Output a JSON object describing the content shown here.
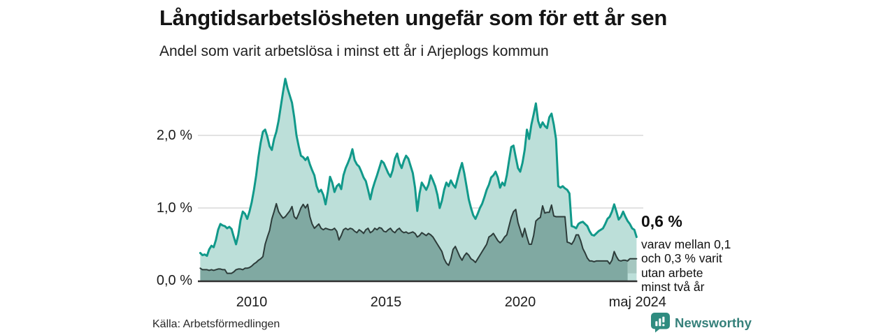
{
  "header": {
    "title": "Långtidsarbetslösheten ungefär som för ett år sen",
    "subtitle": "Andel som varit arbetslösa i minst ett år i Arjeplogs kommun"
  },
  "annotation": {
    "value_label": "0,6 %",
    "lines": [
      "varav mellan 0,1",
      "och 0,3 % varit",
      "utan arbete",
      "minst två år"
    ]
  },
  "footer": {
    "source": "Källa: Arbetsförmedlingen",
    "brand": "Newsworthy"
  },
  "colors": {
    "line_1yr": "#11998a",
    "fill_1yr": "#bcdfd9",
    "line_2yr": "#2d3c3a",
    "fill_2yr": "#80a9a2",
    "band_fill": "#a5c7c0",
    "gridline": "#d8d8d8",
    "baseline": "#303030",
    "brand": "#2f8c80",
    "brand_text": "#35807a"
  },
  "chart_data": {
    "type": "area",
    "title": "Långtidsarbetslösheten ungefär som för ett år sen",
    "subtitle": "Andel som varit arbetslösa i minst ett år i Arjeplogs kommun",
    "unit": "%",
    "frequency": "monthly",
    "x_start": "2008-02",
    "x_end": "2024-05",
    "ylim": [
      0,
      2.9
    ],
    "grid": "horizontal-only",
    "legend": "none",
    "yticks": [
      {
        "value": 0,
        "label": "0,0 %"
      },
      {
        "value": 1,
        "label": "1,0 %"
      },
      {
        "value": 2,
        "label": "2,0 %"
      }
    ],
    "xticks": [
      {
        "t": 2010,
        "label": "2010"
      },
      {
        "t": 2015,
        "label": "2015"
      },
      {
        "t": 2020,
        "label": "2020"
      },
      {
        "t": 2024.37,
        "label": "maj 2024"
      }
    ],
    "series": [
      {
        "name": "Arbetslösa minst ett år",
        "color": "#11998a",
        "fill": "#bcdfd9",
        "values": [
          0.38,
          0.35,
          0.36,
          0.34,
          0.43,
          0.48,
          0.46,
          0.56,
          0.7,
          0.78,
          0.76,
          0.75,
          0.72,
          0.74,
          0.71,
          0.6,
          0.5,
          0.63,
          0.83,
          0.95,
          0.92,
          0.85,
          0.95,
          1.08,
          1.25,
          1.45,
          1.7,
          1.9,
          2.05,
          2.08,
          1.98,
          1.85,
          1.8,
          1.95,
          2.05,
          2.2,
          2.4,
          2.6,
          2.78,
          2.65,
          2.55,
          2.45,
          2.25,
          2.0,
          1.85,
          1.72,
          1.7,
          1.66,
          1.7,
          1.6,
          1.52,
          1.45,
          1.3,
          1.22,
          1.25,
          1.18,
          1.05,
          1.22,
          1.43,
          1.35,
          1.22,
          1.3,
          1.33,
          1.26,
          1.45,
          1.55,
          1.62,
          1.7,
          1.81,
          1.66,
          1.6,
          1.57,
          1.5,
          1.42,
          1.37,
          1.25,
          1.12,
          1.26,
          1.36,
          1.45,
          1.55,
          1.65,
          1.62,
          1.55,
          1.48,
          1.43,
          1.52,
          1.68,
          1.75,
          1.62,
          1.55,
          1.65,
          1.72,
          1.68,
          1.58,
          1.48,
          1.28,
          0.96,
          1.2,
          1.35,
          1.3,
          1.25,
          1.32,
          1.45,
          1.38,
          1.3,
          1.18,
          1.0,
          1.1,
          1.25,
          1.35,
          1.3,
          1.38,
          1.32,
          1.28,
          1.4,
          1.52,
          1.62,
          1.48,
          1.3,
          1.12,
          1.0,
          0.9,
          0.85,
          0.92,
          1.0,
          1.06,
          1.15,
          1.25,
          1.32,
          1.42,
          1.45,
          1.5,
          1.42,
          1.28,
          1.35,
          1.31,
          1.45,
          1.65,
          1.84,
          1.86,
          1.7,
          1.55,
          1.5,
          1.62,
          1.8,
          2.08,
          1.95,
          2.15,
          2.29,
          2.44,
          2.2,
          2.11,
          2.18,
          2.13,
          2.1,
          2.25,
          2.3,
          2.15,
          1.95,
          1.3,
          1.28,
          1.3,
          1.27,
          1.25,
          1.2,
          0.75,
          0.74,
          0.72,
          0.78,
          0.8,
          0.81,
          0.78,
          0.75,
          0.68,
          0.63,
          0.62,
          0.65,
          0.68,
          0.7,
          0.72,
          0.78,
          0.85,
          0.88,
          0.95,
          1.05,
          0.95,
          0.84,
          0.88,
          0.95,
          0.88,
          0.82,
          0.78,
          0.72,
          0.7,
          0.6
        ]
      },
      {
        "name": "Arbetslösa minst två år",
        "color": "#2d3c3a",
        "fill": "#80a9a2",
        "values": [
          0.17,
          0.15,
          0.15,
          0.15,
          0.14,
          0.15,
          0.14,
          0.15,
          0.16,
          0.16,
          0.15,
          0.15,
          0.1,
          0.1,
          0.1,
          0.12,
          0.15,
          0.16,
          0.16,
          0.15,
          0.17,
          0.17,
          0.18,
          0.2,
          0.23,
          0.25,
          0.28,
          0.3,
          0.33,
          0.5,
          0.6,
          0.69,
          0.85,
          0.95,
          1.06,
          0.95,
          0.9,
          0.86,
          0.88,
          0.92,
          0.96,
          1.02,
          0.88,
          0.85,
          0.92,
          1.0,
          1.05,
          1.0,
          1.05,
          0.88,
          0.78,
          0.72,
          0.75,
          0.78,
          0.72,
          0.7,
          0.72,
          0.71,
          0.7,
          0.7,
          0.72,
          0.68,
          0.56,
          0.62,
          0.7,
          0.72,
          0.7,
          0.72,
          0.71,
          0.68,
          0.66,
          0.7,
          0.68,
          0.65,
          0.7,
          0.72,
          0.66,
          0.68,
          0.72,
          0.7,
          0.73,
          0.72,
          0.68,
          0.67,
          0.7,
          0.72,
          0.68,
          0.66,
          0.7,
          0.72,
          0.68,
          0.66,
          0.67,
          0.65,
          0.66,
          0.67,
          0.65,
          0.6,
          0.62,
          0.66,
          0.64,
          0.62,
          0.65,
          0.63,
          0.6,
          0.55,
          0.5,
          0.45,
          0.4,
          0.3,
          0.24,
          0.21,
          0.3,
          0.43,
          0.47,
          0.4,
          0.33,
          0.28,
          0.34,
          0.38,
          0.35,
          0.3,
          0.28,
          0.25,
          0.3,
          0.35,
          0.4,
          0.45,
          0.5,
          0.6,
          0.62,
          0.65,
          0.6,
          0.55,
          0.52,
          0.55,
          0.6,
          0.63,
          0.75,
          0.87,
          0.95,
          0.98,
          0.8,
          0.7,
          0.6,
          0.72,
          0.6,
          0.5,
          0.5,
          0.62,
          0.82,
          0.85,
          0.87,
          1.03,
          0.93,
          0.94,
          0.94,
          1.04,
          0.89,
          0.88,
          0.88,
          0.88,
          0.88,
          0.88,
          0.53,
          0.52,
          0.5,
          0.55,
          0.63,
          0.63,
          0.55,
          0.44,
          0.38,
          0.31,
          0.27,
          0.27,
          0.26,
          0.27,
          0.27,
          0.27,
          0.27,
          0.27,
          0.27,
          0.23,
          0.28,
          0.4,
          0.33,
          0.28,
          0.27,
          0.28,
          0.28,
          0.27,
          0.3,
          0.3,
          0.3,
          0.3
        ]
      }
    ],
    "uncertainty_band": {
      "months": 4,
      "upper": 0.3,
      "lower": 0.1,
      "fill": "#a5c7c0",
      "description": "varav mellan 0,1 och 0,3 % varit utan arbete minst två år"
    },
    "latest": {
      "period": "maj 2024",
      "value_1yr": 0.6,
      "value_2yr_range": [
        0.1,
        0.3
      ]
    }
  }
}
